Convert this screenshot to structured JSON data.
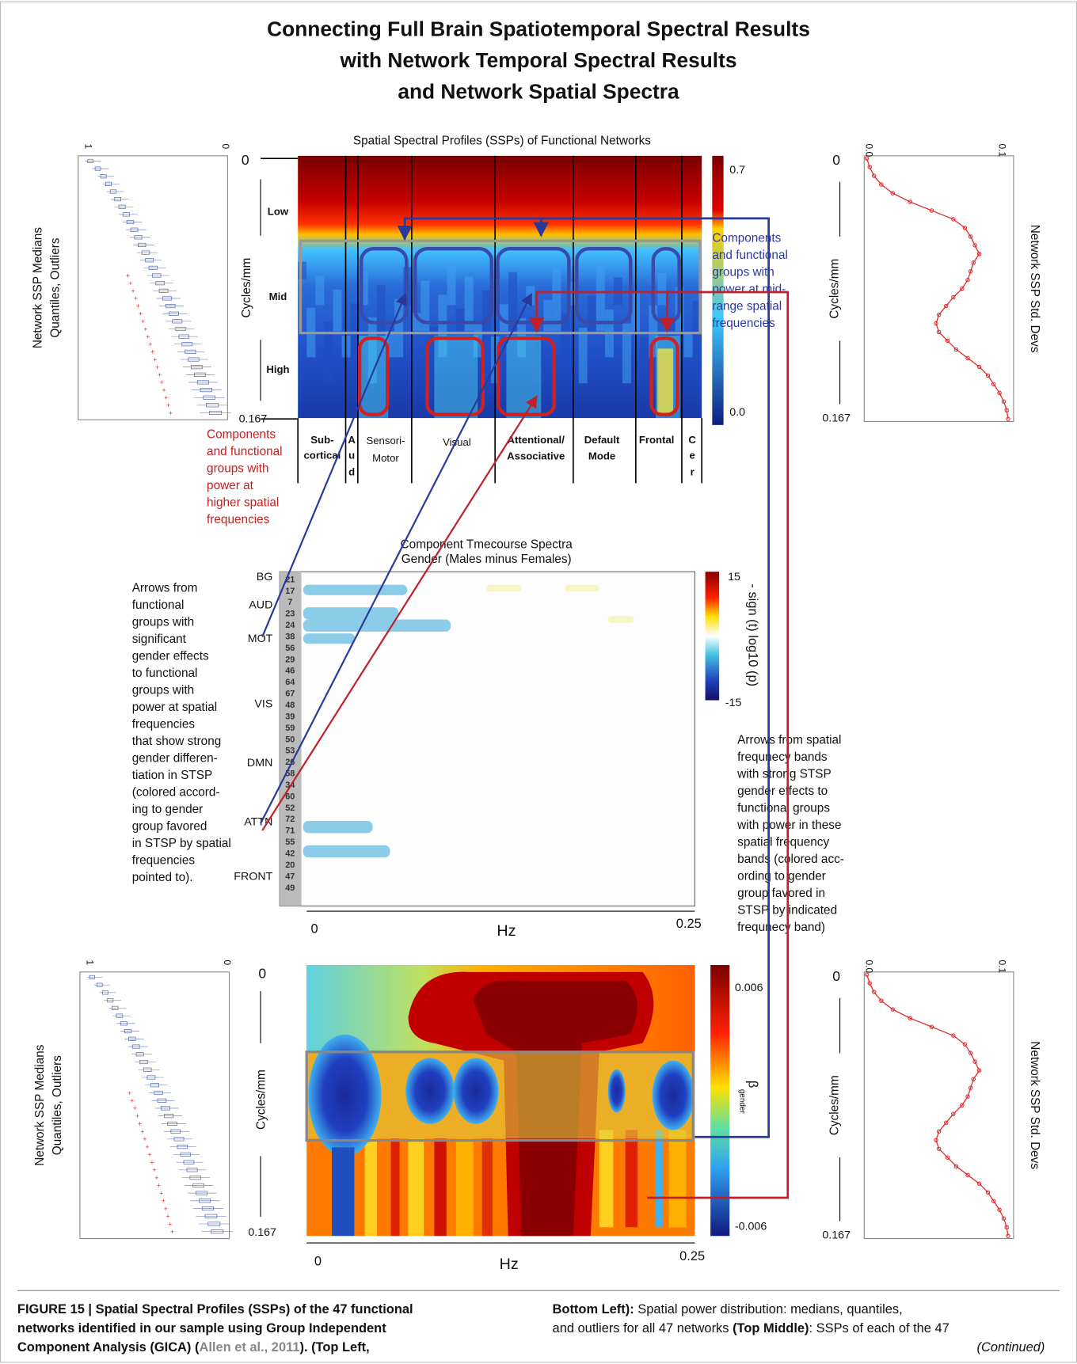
{
  "title": [
    "Connecting Full Brain Spatiotemporal Spectral Results",
    "with Network Temporal Spectral Results",
    "and Network Spatial Spectra"
  ],
  "top_middle": {
    "title": "Spatial Spectral Profiles (SSPs) of Functional Networks",
    "y_max": "0",
    "y_min": "0.167",
    "y_label": "Cycles/mm",
    "bands": [
      "Low",
      "Mid",
      "High"
    ],
    "colorbar_ticks": [
      "0.7",
      "0.0"
    ],
    "groups": [
      [
        "Sub-",
        "cortical"
      ],
      [
        "A",
        "u",
        "d"
      ],
      [
        "Sensori-",
        "Motor"
      ],
      [
        "Visual"
      ],
      [
        "Attentional/",
        "Associative"
      ],
      [
        "Default",
        "Mode"
      ],
      [
        "Frontal"
      ],
      [
        "C",
        "e",
        "r"
      ]
    ],
    "mid_note": [
      "Components",
      "and functional",
      "groups with",
      "power at mid-",
      "range spatial",
      "frequencies"
    ],
    "high_note": [
      "Components",
      "and functional",
      "groups with",
      "power at",
      "higher spatial",
      "frequencies"
    ]
  },
  "top_left": {
    "label": [
      "Network SSP Medians",
      "Quantiles, Outliers"
    ],
    "ticks": [
      "1",
      "0"
    ]
  },
  "top_right": {
    "label": "Network SSP Std. Devs",
    "ticks": [
      "0.0",
      "0.1"
    ],
    "y_max": "0",
    "y_min": "0.167",
    "y_label": "Cycles/mm"
  },
  "middle": {
    "title": [
      "Component Tmecourse Spectra",
      "Gender (Males minus Females)"
    ],
    "groups": [
      "BG",
      "AUD",
      "MOT",
      "VIS",
      "DMN",
      "ATTN",
      "FRONT"
    ],
    "components": [
      "21",
      "17",
      "7",
      "23",
      "24",
      "38",
      "56",
      "29",
      "46",
      "64",
      "67",
      "48",
      "39",
      "59",
      "50",
      "53",
      "26",
      "58",
      "34",
      "60",
      "52",
      "72",
      "71",
      "55",
      "42",
      "20",
      "47",
      "49"
    ],
    "colorbar_ticks": [
      "15",
      "-15"
    ],
    "colorbar_label": "- sign (t) log10 (p)",
    "x_ticks": [
      "0",
      "0.25"
    ],
    "x_label": "Hz",
    "left_note": [
      "Arrows from",
      "functional",
      "groups with",
      "significant",
      "gender effects",
      "to functional",
      "groups with",
      "power at spatial",
      "frequencies",
      "that show strong",
      "gender differen-",
      "tiation in STSP",
      "(colored accord-",
      "ing to gender",
      "group favored",
      "in STSP by spatial",
      "frequencies",
      "pointed to)."
    ],
    "right_note": [
      "Arrows from spatial",
      "frequnecy bands",
      "with strong STSP",
      "gender effects to",
      "functional groups",
      "with power in these",
      "spatial frequency",
      "bands (colored acc-",
      "ording to gender",
      "group favored in",
      "STSP by indicated",
      "frequnecy band)"
    ]
  },
  "bottom_left": {
    "label": [
      "Network SSP Medians",
      "Quantiles, Outliers"
    ],
    "ticks": [
      "1",
      "0"
    ]
  },
  "bottom_middle": {
    "y_max": "0",
    "y_min": "0.167",
    "y_label": "Cycles/mm",
    "colorbar_ticks": [
      "0.006",
      "-0.006"
    ],
    "colorbar_label": "β",
    "colorbar_label_sub": "gender",
    "x_ticks": [
      "0",
      "0.25"
    ],
    "x_label": "Hz"
  },
  "bottom_right": {
    "label": "Network SSP Std. Devs",
    "ticks": [
      "0.0",
      "0.1"
    ],
    "y_max": "0",
    "y_min": "0.167",
    "y_label": "Cycles/mm"
  },
  "caption": {
    "left": [
      [
        "FIGURE 15 | Spatial Spectral Profiles (SSPs) of the 47 functional"
      ],
      [
        "networks identified in our sample using Group Independent"
      ],
      [
        "Component Analysis (GICA) (",
        "Allen et al., 2011",
        "). (Top Left,"
      ]
    ],
    "right": [
      [
        "Bottom Left):",
        " Spatial power distribution: medians, quantiles,"
      ],
      [
        "and outliers for all 47 networks ",
        "(Top Middle)",
        ": SSPs of each of the 47"
      ],
      [
        "(Continued)"
      ]
    ]
  }
}
